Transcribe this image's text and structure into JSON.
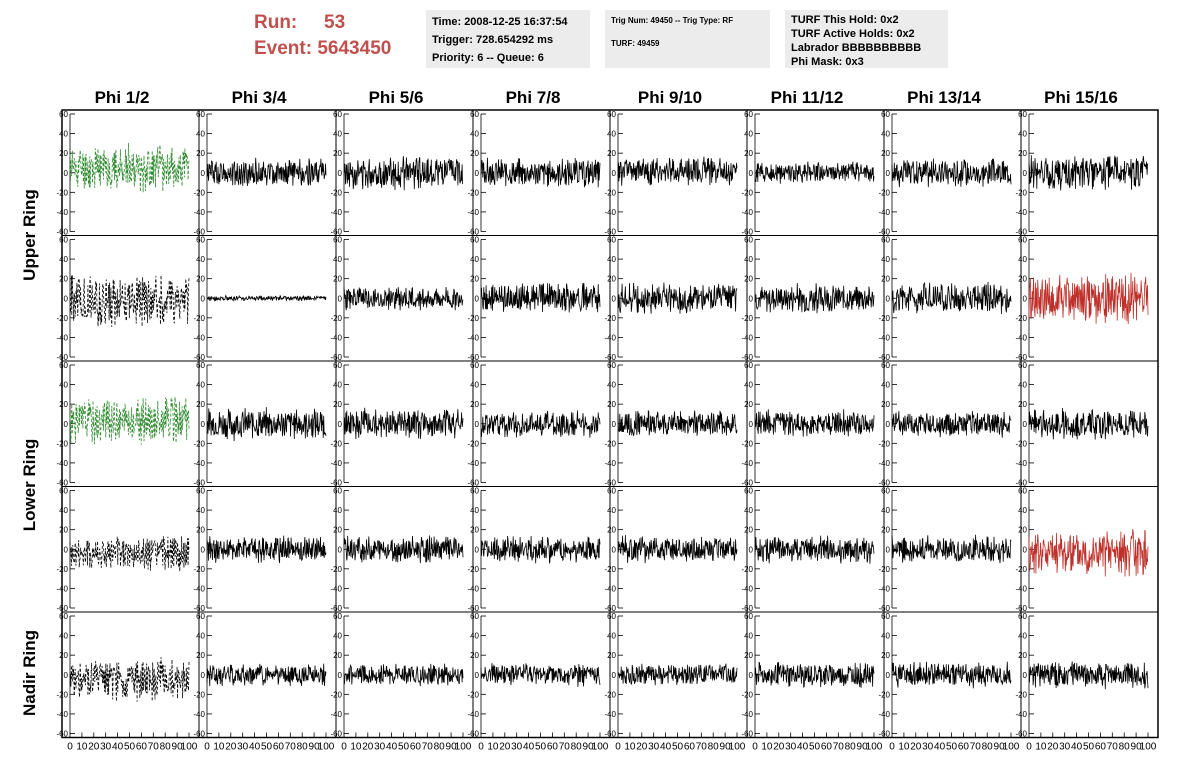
{
  "header": {
    "run_label": "Run:",
    "run_value": "53",
    "event_label": "Event:",
    "event_value": "5643450"
  },
  "time_box": {
    "time": "Time: 2008-12-25 16:37:54",
    "trigger": "Trigger: 728.654292 ms",
    "priority": "Priority: 6 -- Queue: 6"
  },
  "trig_box": {
    "trig": "Trig Num: 49450 -- Trig Type: RF",
    "turf": "TURF: 49459"
  },
  "turf_box": {
    "this_hold": "TURF This Hold: 0x2",
    "active_holds": "TURF Active Holds: 0x2",
    "labrador": "Labrador BBBBBBBBBB",
    "phi_mask": "Phi Mask: 0x3"
  },
  "chart_data": {
    "type": "line",
    "columns": [
      "Phi 1/2",
      "Phi 3/4",
      "Phi 5/6",
      "Phi 7/8",
      "Phi 9/10",
      "Phi 11/12",
      "Phi 13/14",
      "Phi 15/16"
    ],
    "rows": [
      "Upper Ring",
      "Upper Ring",
      "Lower Ring",
      "Lower Ring",
      "Nadir Ring"
    ],
    "row_labels": [
      {
        "label": "Upper Ring",
        "spans_rows": [
          0,
          1
        ]
      },
      {
        "label": "Lower Ring",
        "spans_rows": [
          2,
          3
        ]
      },
      {
        "label": "Nadir Ring",
        "spans_rows": [
          4
        ]
      }
    ],
    "xlim": [
      0,
      100
    ],
    "ylim": [
      -60,
      60
    ],
    "x_ticks": [
      0,
      10,
      20,
      30,
      40,
      50,
      60,
      70,
      80,
      90,
      100
    ],
    "x_tick_labels_shown": [
      "0",
      "10",
      "20",
      "30",
      "40",
      "50",
      "60",
      "70",
      "80",
      "90",
      "100"
    ],
    "y_ticks": [
      -60,
      -40,
      -20,
      0,
      20,
      40,
      60
    ],
    "y_tick_labels": [
      "-60",
      "-40",
      "-20",
      "0",
      "20",
      "40",
      "60"
    ],
    "colors": {
      "normal": "#000000",
      "triggered_phi": "#2e8b2e",
      "triggered_antenna": "#c0302a"
    },
    "panels": [
      {
        "row": 0,
        "col": 0,
        "color": "#2e8b2e",
        "style": "dashed",
        "amplitude": 26,
        "offset": 5,
        "seed": 11
      },
      {
        "row": 0,
        "col": 1,
        "color": "#000000",
        "style": "solid",
        "amplitude": 16,
        "offset": 0,
        "seed": 12
      },
      {
        "row": 0,
        "col": 2,
        "color": "#000000",
        "style": "solid",
        "amplitude": 18,
        "offset": 0,
        "seed": 13
      },
      {
        "row": 0,
        "col": 3,
        "color": "#000000",
        "style": "solid",
        "amplitude": 16,
        "offset": 0,
        "seed": 14
      },
      {
        "row": 0,
        "col": 4,
        "color": "#000000",
        "style": "solid",
        "amplitude": 16,
        "offset": 2,
        "seed": 15
      },
      {
        "row": 0,
        "col": 5,
        "color": "#000000",
        "style": "solid",
        "amplitude": 12,
        "offset": 0,
        "seed": 16
      },
      {
        "row": 0,
        "col": 6,
        "color": "#000000",
        "style": "solid",
        "amplitude": 16,
        "offset": 0,
        "seed": 17
      },
      {
        "row": 0,
        "col": 7,
        "color": "#000000",
        "style": "solid",
        "amplitude": 20,
        "offset": 0,
        "seed": 18
      },
      {
        "row": 1,
        "col": 0,
        "color": "#000000",
        "style": "dashed",
        "amplitude": 30,
        "offset": -2,
        "seed": 21
      },
      {
        "row": 1,
        "col": 1,
        "color": "#000000",
        "style": "solid",
        "amplitude": 3,
        "offset": 0,
        "seed": 22
      },
      {
        "row": 1,
        "col": 2,
        "color": "#000000",
        "style": "solid",
        "amplitude": 14,
        "offset": 0,
        "seed": 23
      },
      {
        "row": 1,
        "col": 3,
        "color": "#000000",
        "style": "solid",
        "amplitude": 17,
        "offset": 0,
        "seed": 24
      },
      {
        "row": 1,
        "col": 4,
        "color": "#000000",
        "style": "solid",
        "amplitude": 17,
        "offset": 0,
        "seed": 25
      },
      {
        "row": 1,
        "col": 5,
        "color": "#000000",
        "style": "solid",
        "amplitude": 16,
        "offset": 0,
        "seed": 26
      },
      {
        "row": 1,
        "col": 6,
        "color": "#000000",
        "style": "solid",
        "amplitude": 17,
        "offset": 0,
        "seed": 27
      },
      {
        "row": 1,
        "col": 7,
        "color": "#c0302a",
        "style": "solid",
        "amplitude": 28,
        "offset": 0,
        "seed": 28
      },
      {
        "row": 2,
        "col": 0,
        "color": "#2e8b2e",
        "style": "dashed",
        "amplitude": 26,
        "offset": 3,
        "seed": 31
      },
      {
        "row": 2,
        "col": 1,
        "color": "#000000",
        "style": "solid",
        "amplitude": 18,
        "offset": 0,
        "seed": 32
      },
      {
        "row": 2,
        "col": 2,
        "color": "#000000",
        "style": "solid",
        "amplitude": 17,
        "offset": 0,
        "seed": 33
      },
      {
        "row": 2,
        "col": 3,
        "color": "#000000",
        "style": "solid",
        "amplitude": 15,
        "offset": 0,
        "seed": 34
      },
      {
        "row": 2,
        "col": 4,
        "color": "#000000",
        "style": "solid",
        "amplitude": 15,
        "offset": 0,
        "seed": 35
      },
      {
        "row": 2,
        "col": 5,
        "color": "#000000",
        "style": "solid",
        "amplitude": 15,
        "offset": 0,
        "seed": 36
      },
      {
        "row": 2,
        "col": 6,
        "color": "#000000",
        "style": "solid",
        "amplitude": 15,
        "offset": 0,
        "seed": 37
      },
      {
        "row": 2,
        "col": 7,
        "color": "#000000",
        "style": "solid",
        "amplitude": 17,
        "offset": 0,
        "seed": 38
      },
      {
        "row": 3,
        "col": 0,
        "color": "#000000",
        "style": "dashed",
        "amplitude": 20,
        "offset": -5,
        "seed": 41
      },
      {
        "row": 3,
        "col": 1,
        "color": "#000000",
        "style": "solid",
        "amplitude": 15,
        "offset": 0,
        "seed": 42
      },
      {
        "row": 3,
        "col": 2,
        "color": "#000000",
        "style": "solid",
        "amplitude": 15,
        "offset": 0,
        "seed": 43
      },
      {
        "row": 3,
        "col": 3,
        "color": "#000000",
        "style": "solid",
        "amplitude": 15,
        "offset": 0,
        "seed": 44
      },
      {
        "row": 3,
        "col": 4,
        "color": "#000000",
        "style": "solid",
        "amplitude": 15,
        "offset": 0,
        "seed": 45
      },
      {
        "row": 3,
        "col": 5,
        "color": "#000000",
        "style": "solid",
        "amplitude": 15,
        "offset": 0,
        "seed": 46
      },
      {
        "row": 3,
        "col": 6,
        "color": "#000000",
        "style": "solid",
        "amplitude": 15,
        "offset": 0,
        "seed": 47
      },
      {
        "row": 3,
        "col": 7,
        "color": "#c0302a",
        "style": "solid",
        "amplitude": 26,
        "offset": -3,
        "seed": 48
      },
      {
        "row": 4,
        "col": 0,
        "color": "#000000",
        "style": "dashed",
        "amplitude": 24,
        "offset": -5,
        "seed": 51
      },
      {
        "row": 4,
        "col": 1,
        "color": "#000000",
        "style": "solid",
        "amplitude": 13,
        "offset": 0,
        "seed": 52
      },
      {
        "row": 4,
        "col": 2,
        "color": "#000000",
        "style": "solid",
        "amplitude": 12,
        "offset": 0,
        "seed": 53
      },
      {
        "row": 4,
        "col": 3,
        "color": "#000000",
        "style": "solid",
        "amplitude": 13,
        "offset": 0,
        "seed": 54
      },
      {
        "row": 4,
        "col": 4,
        "color": "#000000",
        "style": "solid",
        "amplitude": 12,
        "offset": 0,
        "seed": 55
      },
      {
        "row": 4,
        "col": 5,
        "color": "#000000",
        "style": "solid",
        "amplitude": 14,
        "offset": 0,
        "seed": 56
      },
      {
        "row": 4,
        "col": 6,
        "color": "#000000",
        "style": "solid",
        "amplitude": 14,
        "offset": 0,
        "seed": 57
      },
      {
        "row": 4,
        "col": 7,
        "color": "#000000",
        "style": "solid",
        "amplitude": 15,
        "offset": 0,
        "seed": 58
      }
    ]
  }
}
